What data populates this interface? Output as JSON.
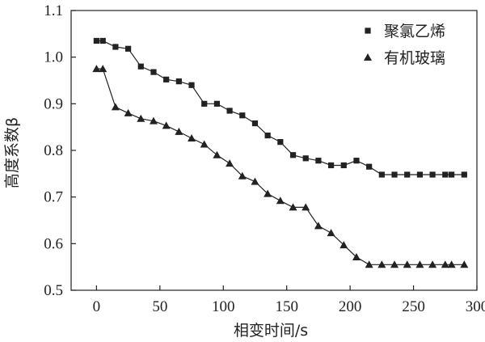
{
  "chart_data": {
    "type": "line",
    "xlabel": "相变时间/s",
    "ylabel": "高度系数β",
    "xlim": [
      -20,
      300
    ],
    "ylim": [
      0.5,
      1.1
    ],
    "x_ticks": [
      0,
      50,
      100,
      150,
      200,
      250,
      300
    ],
    "y_ticks": [
      0.5,
      0.6,
      0.7,
      0.8,
      0.9,
      1.0,
      1.1
    ],
    "x_tick_labels": [
      "0",
      "50",
      "100",
      "150",
      "200",
      "250",
      "300"
    ],
    "y_tick_labels": [
      "0.5",
      "0.6",
      "0.7",
      "0.8",
      "0.9",
      "1.0",
      "1.1"
    ],
    "grid": false,
    "legend_position": "top-right",
    "series": [
      {
        "name": "聚氯乙烯",
        "marker": "square",
        "color": "#222222",
        "x": [
          0,
          5,
          15,
          25,
          35,
          45,
          55,
          65,
          75,
          85,
          95,
          105,
          115,
          125,
          135,
          145,
          155,
          165,
          175,
          185,
          195,
          205,
          215,
          225,
          235,
          245,
          255,
          265,
          275,
          280,
          290
        ],
        "y": [
          1.035,
          1.035,
          1.022,
          1.018,
          0.98,
          0.968,
          0.952,
          0.948,
          0.94,
          0.9,
          0.9,
          0.885,
          0.875,
          0.858,
          0.832,
          0.818,
          0.79,
          0.783,
          0.778,
          0.768,
          0.768,
          0.778,
          0.765,
          0.748,
          0.748,
          0.748,
          0.748,
          0.748,
          0.748,
          0.748,
          0.748
        ]
      },
      {
        "name": "有机玻璃",
        "marker": "triangle",
        "color": "#222222",
        "x": [
          0,
          5,
          15,
          25,
          35,
          45,
          55,
          65,
          75,
          85,
          95,
          105,
          115,
          125,
          135,
          145,
          155,
          165,
          175,
          185,
          195,
          205,
          215,
          225,
          235,
          245,
          255,
          265,
          275,
          280,
          290
        ],
        "y": [
          0.975,
          0.975,
          0.893,
          0.88,
          0.868,
          0.863,
          0.853,
          0.84,
          0.826,
          0.813,
          0.79,
          0.772,
          0.745,
          0.733,
          0.707,
          0.692,
          0.678,
          0.678,
          0.638,
          0.623,
          0.597,
          0.571,
          0.555,
          0.555,
          0.555,
          0.555,
          0.555,
          0.555,
          0.555,
          0.555,
          0.555
        ]
      }
    ]
  }
}
